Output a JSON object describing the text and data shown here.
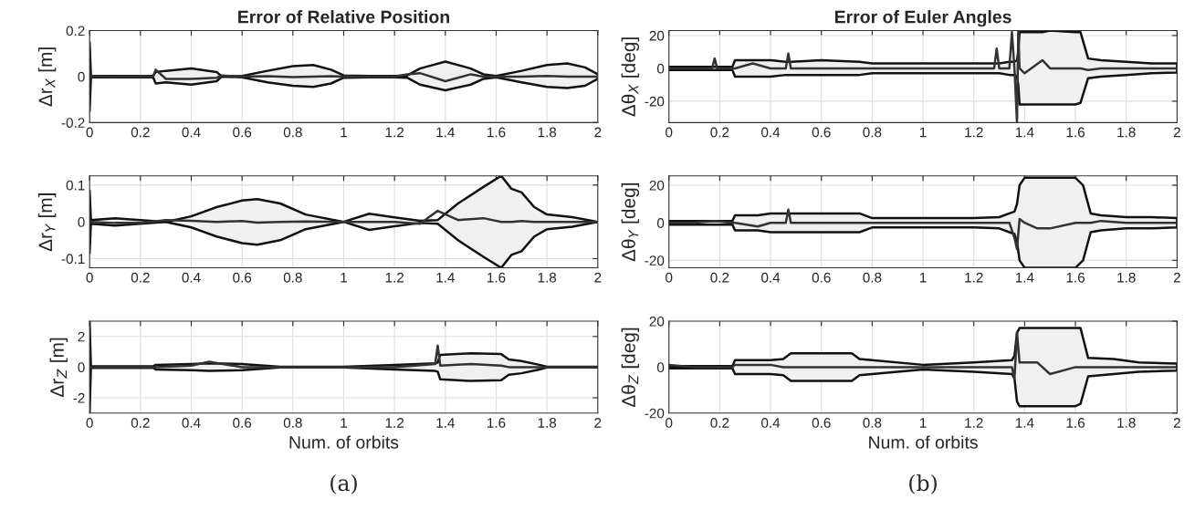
{
  "chart_data": [
    {
      "type": "line",
      "title": "Error of Relative Position",
      "ylabel": "Δr$_{X}$ [m]",
      "grid": true,
      "xlim": [
        0,
        2
      ],
      "xticks": [
        0,
        0.2,
        0.4,
        0.6,
        0.8,
        1,
        1.2,
        1.4,
        1.6,
        1.8,
        2
      ],
      "ylim": [
        -0.2,
        0.2
      ],
      "yticks": [
        -0.2,
        0,
        0.2
      ],
      "x": [
        0,
        0.005,
        0.01,
        0.1,
        0.2,
        0.25,
        0.26,
        0.3,
        0.4,
        0.5,
        0.52,
        0.6,
        0.7,
        0.8,
        0.88,
        0.95,
        1.0,
        1.1,
        1.2,
        1.25,
        1.3,
        1.4,
        1.5,
        1.55,
        1.6,
        1.7,
        1.8,
        1.88,
        1.95,
        2.0
      ],
      "series": [
        {
          "color": "#333333",
          "values": [
            0,
            0,
            0.002,
            0,
            0.002,
            0,
            0.03,
            -0.01,
            -0.01,
            -0.005,
            0.005,
            0,
            0.002,
            -0.002,
            0,
            0.002,
            0,
            0,
            0,
            0.01,
            0.015,
            -0.02,
            0.01,
            0,
            0,
            0,
            0.003,
            0,
            0,
            0
          ],
          "upper": [
            0.15,
            0.005,
            0.003,
            0.003,
            0.003,
            0.003,
            0.02,
            0.025,
            0.035,
            0.02,
            0.0,
            0.003,
            0.025,
            0.045,
            0.05,
            0.03,
            0.005,
            0.003,
            0.003,
            0.005,
            0.035,
            0.065,
            0.035,
            0.01,
            0.003,
            0.025,
            0.05,
            0.057,
            0.04,
            0.01
          ],
          "lower": [
            -0.15,
            -0.005,
            -0.003,
            -0.003,
            -0.003,
            -0.003,
            -0.03,
            -0.025,
            -0.035,
            -0.02,
            0.0,
            -0.003,
            -0.025,
            -0.04,
            -0.045,
            -0.03,
            -0.005,
            -0.003,
            -0.003,
            -0.005,
            -0.035,
            -0.06,
            -0.035,
            -0.01,
            -0.003,
            -0.025,
            -0.045,
            -0.05,
            -0.04,
            -0.01
          ]
        }
      ]
    },
    {
      "type": "line",
      "title": "Error of Euler Angles",
      "ylabel": "Δθ$_{X}$ [deg]",
      "grid": true,
      "xlim": [
        0,
        2
      ],
      "xticks": [
        0,
        0.2,
        0.4,
        0.6,
        0.8,
        1,
        1.2,
        1.4,
        1.6,
        1.8,
        2
      ],
      "ylim": [
        -33,
        23
      ],
      "yticks": [
        -20,
        0,
        20
      ],
      "x": [
        0,
        0.17,
        0.18,
        0.19,
        0.25,
        0.26,
        0.33,
        0.4,
        0.46,
        0.47,
        0.48,
        0.6,
        0.75,
        0.8,
        1.0,
        1.2,
        1.28,
        1.29,
        1.3,
        1.34,
        1.35,
        1.36,
        1.37,
        1.375,
        1.38,
        1.4,
        1.47,
        1.5,
        1.6,
        1.62,
        1.65,
        1.7,
        1.8,
        1.9,
        2.0
      ],
      "series": [
        {
          "color": "#333333",
          "values": [
            0,
            0,
            6,
            0,
            0,
            0,
            3,
            0,
            0,
            9,
            0,
            0,
            0,
            0,
            0,
            0,
            0,
            12,
            0,
            0,
            22,
            0,
            -33,
            23,
            0,
            -3,
            5,
            0,
            0,
            0,
            -1,
            0,
            0,
            0,
            0
          ],
          "upper": [
            1,
            1,
            1,
            1,
            1,
            5,
            5,
            5,
            4,
            4,
            4,
            5,
            4,
            3,
            3,
            3,
            3,
            3,
            3,
            4,
            4,
            4,
            5,
            10,
            22,
            22,
            22,
            23,
            22,
            22,
            6,
            5,
            4,
            3,
            3
          ],
          "lower": [
            -1,
            -1,
            -1,
            -1,
            -1,
            -5,
            -5,
            -5,
            -4,
            -4,
            -4,
            -4,
            -4,
            -3,
            -3,
            -3,
            -3,
            -3,
            -3,
            -4,
            -4,
            -4,
            -5,
            -10,
            -22,
            -22,
            -22,
            -22,
            -22,
            -21,
            -6,
            -5,
            -4,
            -3,
            -2.5
          ]
        }
      ]
    },
    {
      "type": "line",
      "ylabel": "Δr$_{Y}$ [m]",
      "grid": true,
      "xlim": [
        0,
        2
      ],
      "xticks": [
        0,
        0.2,
        0.4,
        0.6,
        0.8,
        1,
        1.2,
        1.4,
        1.6,
        1.8,
        2
      ],
      "ylim": [
        -0.125,
        0.125
      ],
      "yticks": [
        -0.1,
        0,
        0.1
      ],
      "x": [
        0,
        0.005,
        0.1,
        0.2,
        0.3,
        0.4,
        0.5,
        0.6,
        0.66,
        0.75,
        0.85,
        1.0,
        1.1,
        1.2,
        1.3,
        1.37,
        1.45,
        1.55,
        1.62,
        1.66,
        1.7,
        1.75,
        1.8,
        1.9,
        2.0
      ],
      "series": [
        {
          "color": "#333333",
          "values": [
            0,
            0,
            -0.003,
            -0.003,
            0.005,
            0.003,
            0,
            0.002,
            -0.002,
            0,
            0.001,
            0,
            0,
            0,
            -0.005,
            0.03,
            0.005,
            0.01,
            0,
            0,
            0.002,
            0,
            0,
            0,
            0
          ],
          "upper": [
            0.085,
            0.005,
            0.01,
            0.005,
            0,
            0.015,
            0.04,
            0.058,
            0.062,
            0.05,
            0.02,
            0,
            0.022,
            0.012,
            0.003,
            0.005,
            0.05,
            0.095,
            0.125,
            0.09,
            0.08,
            0.04,
            0.02,
            0.013,
            0.0
          ],
          "lower": [
            -0.085,
            -0.005,
            -0.01,
            -0.005,
            0,
            -0.015,
            -0.04,
            -0.058,
            -0.062,
            -0.05,
            -0.02,
            0,
            -0.022,
            -0.012,
            -0.003,
            -0.005,
            -0.05,
            -0.095,
            -0.125,
            -0.09,
            -0.08,
            -0.04,
            -0.02,
            -0.013,
            0.0
          ]
        }
      ]
    },
    {
      "type": "line",
      "ylabel": "Δθ$_{Y}$ [deg]",
      "grid": true,
      "xlim": [
        0,
        2
      ],
      "xticks": [
        0,
        0.2,
        0.4,
        0.6,
        0.8,
        1,
        1.2,
        1.4,
        1.6,
        1.8,
        2
      ],
      "ylim": [
        -24,
        25
      ],
      "yticks": [
        -20,
        0,
        20
      ],
      "x": [
        0,
        0.1,
        0.18,
        0.25,
        0.26,
        0.35,
        0.4,
        0.46,
        0.47,
        0.48,
        0.6,
        0.75,
        0.8,
        1.0,
        1.2,
        1.3,
        1.34,
        1.36,
        1.37,
        1.38,
        1.4,
        1.45,
        1.5,
        1.6,
        1.63,
        1.66,
        1.7,
        1.8,
        1.9,
        2.0
      ],
      "series": [
        {
          "color": "#333333",
          "values": [
            0,
            0,
            1,
            0,
            0,
            -2,
            0,
            0,
            7,
            0,
            0,
            0,
            0,
            0,
            0,
            0,
            0,
            -8,
            -14,
            2,
            0,
            -3,
            -3,
            0,
            0,
            0,
            1,
            0,
            0,
            0
          ],
          "upper": [
            1,
            1,
            1,
            1,
            4,
            4,
            5,
            5,
            5,
            5,
            5,
            5,
            2.5,
            2.5,
            2.5,
            3,
            5,
            6,
            10,
            20,
            24,
            24,
            24,
            24,
            20,
            5,
            4,
            3,
            3,
            2.5
          ],
          "lower": [
            -1,
            -1,
            -1,
            -1,
            -4,
            -4,
            -5,
            -5,
            -5,
            -5,
            -5,
            -5,
            -2.5,
            -2.5,
            -2.5,
            -3,
            -5,
            -6,
            -10,
            -20,
            -24,
            -24,
            -24,
            -24,
            -20,
            -5,
            -4,
            -3,
            -3,
            -2.5
          ]
        }
      ]
    },
    {
      "type": "line",
      "ylabel": "Δr$_{Z}$ [m]",
      "xlabel": "Num. of orbits",
      "annotations": [
        "(a)"
      ],
      "grid": true,
      "xlim": [
        0,
        2
      ],
      "xticks": [
        0,
        0.2,
        0.4,
        0.6,
        0.8,
        1,
        1.2,
        1.4,
        1.6,
        1.8,
        2
      ],
      "ylim": [
        -3,
        3
      ],
      "yticks": [
        -2,
        0,
        2
      ],
      "x": [
        0,
        0.005,
        0.1,
        0.25,
        0.26,
        0.4,
        0.47,
        0.6,
        0.75,
        0.9,
        1.0,
        1.2,
        1.36,
        1.37,
        1.38,
        1.5,
        1.62,
        1.65,
        1.7,
        1.77,
        1.8,
        1.9,
        2.0
      ],
      "series": [
        {
          "color": "#333333",
          "values": [
            0,
            0,
            0,
            0,
            0,
            0.1,
            0.35,
            0,
            0,
            0,
            0,
            0,
            0.2,
            1.4,
            0.1,
            0.2,
            0.1,
            0,
            0,
            0,
            0,
            0,
            0
          ],
          "upper": [
            3,
            0.05,
            0.05,
            0.05,
            0.15,
            0.2,
            0.25,
            0.2,
            0.02,
            0.02,
            0.02,
            0.15,
            0.25,
            0.3,
            0.8,
            0.9,
            0.85,
            0.5,
            0.4,
            0.15,
            0.02,
            0.02,
            0.02
          ],
          "lower": [
            -3,
            -0.05,
            -0.05,
            -0.05,
            -0.15,
            -0.2,
            -0.25,
            -0.2,
            -0.02,
            -0.02,
            -0.02,
            -0.15,
            -0.25,
            -0.3,
            -0.8,
            -0.9,
            -0.85,
            -0.5,
            -0.4,
            -0.15,
            -0.02,
            -0.02,
            -0.02
          ]
        }
      ]
    },
    {
      "type": "line",
      "ylabel": "Δθ$_{Z}$ [deg]",
      "xlabel": "Num. of orbits",
      "annotations": [
        "(b)"
      ],
      "grid": true,
      "xlim": [
        0,
        2
      ],
      "xticks": [
        0,
        0.2,
        0.4,
        0.6,
        0.8,
        1,
        1.2,
        1.4,
        1.6,
        1.8,
        2
      ],
      "ylim": [
        -20,
        20
      ],
      "yticks": [
        -20,
        0,
        20
      ],
      "x": [
        0,
        0.1,
        0.25,
        0.26,
        0.4,
        0.45,
        0.48,
        0.6,
        0.72,
        0.75,
        0.8,
        1.0,
        1.2,
        1.35,
        1.36,
        1.37,
        1.38,
        1.45,
        1.5,
        1.6,
        1.62,
        1.65,
        1.75,
        1.85,
        2.0
      ],
      "series": [
        {
          "color": "#333333",
          "values": [
            1,
            0,
            0,
            1,
            1,
            0,
            0,
            0,
            0,
            0,
            0,
            0,
            0,
            0,
            -5,
            15,
            2,
            2,
            -3,
            0,
            0,
            0,
            0,
            0,
            0
          ],
          "upper": [
            0.5,
            0.5,
            0.5,
            3,
            3,
            3.5,
            6,
            6,
            6,
            3.5,
            3,
            1,
            2,
            3,
            5,
            15,
            17,
            17,
            17,
            17,
            17,
            4,
            3.5,
            2,
            1.5
          ],
          "lower": [
            -0.5,
            -0.5,
            -0.5,
            -3,
            -3,
            -3.5,
            -6,
            -6,
            -6,
            -3.5,
            -3,
            -1,
            -2,
            -3,
            -5,
            -15,
            -17,
            -17,
            -17,
            -17,
            -16,
            -4,
            -3,
            -2,
            -1.5
          ]
        }
      ]
    }
  ]
}
